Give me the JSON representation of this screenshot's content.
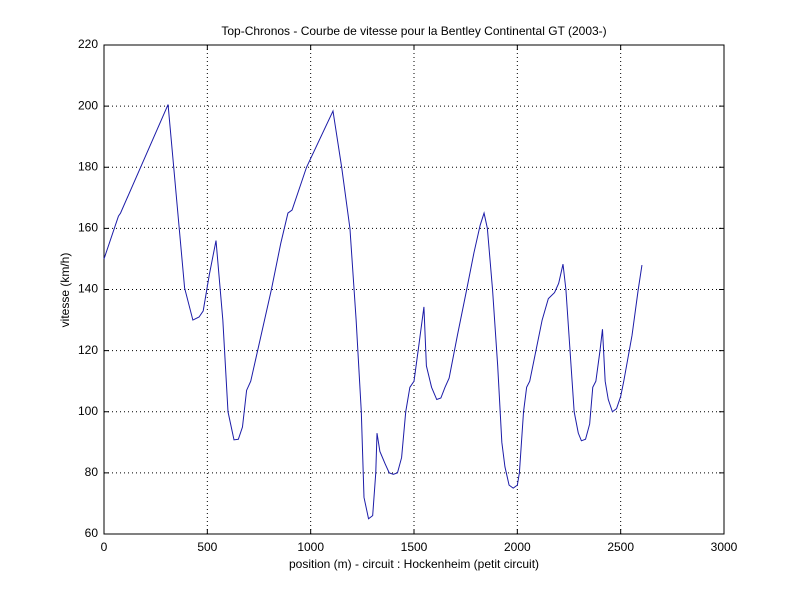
{
  "chart_data": {
    "type": "line",
    "title": "Top-Chronos - Courbe de vitesse pour la Bentley Continental GT (2003-)",
    "x_label": "position (m) - circuit : Hockenheim (petit circuit)",
    "y_label": "vitesse (km/h)",
    "x": [
      0,
      70,
      80,
      310,
      390,
      430,
      460,
      480,
      510,
      542,
      575,
      600,
      629,
      650,
      670,
      690,
      710,
      760,
      810,
      855,
      890,
      910,
      980,
      1108,
      1150,
      1190,
      1220,
      1245,
      1258,
      1280,
      1300,
      1315,
      1321,
      1335,
      1360,
      1380,
      1400,
      1420,
      1440,
      1460,
      1480,
      1500,
      1520,
      1548,
      1560,
      1585,
      1610,
      1630,
      1650,
      1670,
      1710,
      1755,
      1790,
      1820,
      1839,
      1855,
      1880,
      1905,
      1925,
      1940,
      1960,
      1980,
      2000,
      2010,
      2030,
      2045,
      2060,
      2090,
      2120,
      2150,
      2180,
      2200,
      2221,
      2235,
      2255,
      2275,
      2295,
      2310,
      2330,
      2350,
      2365,
      2380,
      2400,
      2412,
      2425,
      2440,
      2460,
      2480,
      2500,
      2515,
      2555,
      2585,
      2603
    ],
    "series": [
      {
        "color": "#1c1ca8",
        "values": [
          150,
          164,
          165,
          200.5,
          140.5,
          130,
          131,
          133,
          145,
          156,
          130,
          100,
          90.8,
          91,
          95,
          107,
          110,
          125,
          140,
          155,
          165,
          166,
          180,
          198.4,
          180,
          160,
          130,
          100,
          72,
          65,
          66,
          80,
          93,
          87,
          83,
          80,
          79.5,
          80,
          85,
          100,
          108,
          110,
          120,
          134.3,
          115,
          108,
          104,
          104.5,
          108,
          111,
          125,
          140,
          152,
          161,
          165,
          160,
          140,
          115,
          90,
          82,
          76,
          75,
          76,
          80,
          100,
          108,
          110,
          120,
          130,
          137,
          139,
          142,
          148.3,
          140,
          120,
          100,
          93,
          90.5,
          91,
          96,
          108,
          110,
          120,
          127,
          110,
          104,
          100,
          101,
          105,
          110,
          125,
          140,
          148
        ]
      }
    ],
    "xlim": [
      0,
      3000
    ],
    "xticks": [
      0,
      500,
      1000,
      1500,
      2000,
      2500,
      3000
    ],
    "ylim": [
      60,
      220
    ],
    "yticks": [
      60,
      80,
      100,
      120,
      140,
      160,
      180,
      200,
      220
    ],
    "grid": true
  }
}
